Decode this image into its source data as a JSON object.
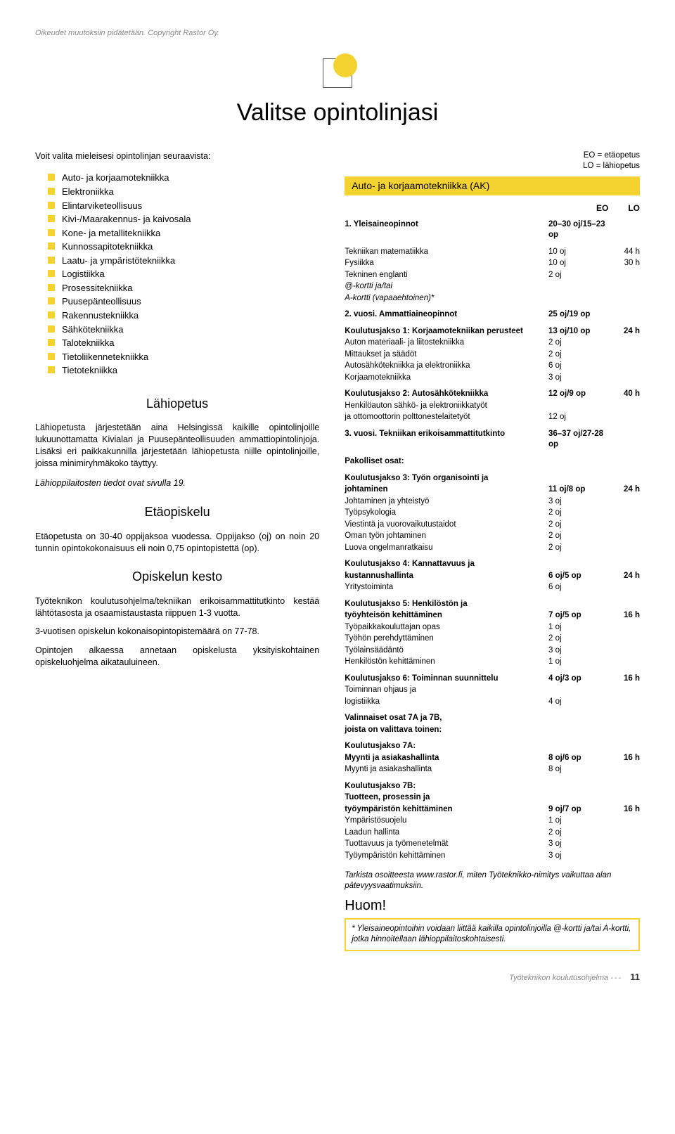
{
  "copyright": "Oikeudet muutoksiin pidätetään. Copyright Rastor Oy.",
  "pageTitle": "Valitse opintolinjasi",
  "intro": "Voit valita mieleisesi opintolinjan seuraavista:",
  "bullets": [
    "Auto- ja korjaamotekniikka",
    "Elektroniikka",
    "Elintarviketeollisuus",
    "Kivi-/Maarakennus- ja kaivosala",
    "Kone- ja metallitekniikka",
    "Kunnossapitotekniikka",
    "Laatu- ja ympäristötekniikka",
    "Logistiikka",
    "Prosessitekniikka",
    "Puusepänteollisuus",
    "Rakennustekniikka",
    "Sähkötekniikka",
    "Talotekniikka",
    "Tietoliikennetekniikka",
    "Tietotekniikka"
  ],
  "sub1": {
    "title": "Lähiopetus",
    "p1": "Lähiopetusta järjestetään aina Helsingissä kaikille opintolinjoille lukuunottamatta Kivialan ja Puusepänteollisuuden ammattiopintolinjoja. Lisäksi eri paikkakunnilla järjestetään lähiopetusta niille opintolinjoille, joissa minimiryhmäkoko täyttyy.",
    "p2": "Lähioppilaitosten tiedot ovat sivulla 19."
  },
  "sub2": {
    "title": "Etäopiskelu",
    "p1": "Etäopetusta on 30-40 oppijaksoa vuodessa. Oppijakso (oj) on noin 20 tunnin opintokokonaisuus eli noin 0,75 opintopistettä (op)."
  },
  "sub3": {
    "title": "Opiskelun kesto",
    "p1": "Työteknikon koulutusohjelma/tekniikan erikoisammattitutkinto kestää lähtötasosta ja osaamistaustasta riippuen 1-3 vuotta.",
    "p2": "3-vuotisen opiskelun kokonaisopintopistemäärä on 77-78.",
    "p3": "Opintojen alkaessa annetaan opiskelusta yksityiskohtainen opiskeluohjelma aikatauluineen."
  },
  "legend": {
    "l1": "EO = etäopetus",
    "l2": "LO = lähiopetus"
  },
  "sectionBar": "Auto- ja korjaamotekniikka (AK)",
  "hdr": {
    "c1": "EO",
    "c2": "LO"
  },
  "blocks": [
    {
      "type": "bold",
      "lbl": "1. Yleisaineopinnot",
      "c1": "20–30 oj/15–23 op",
      "c2": ""
    },
    {
      "type": "spacer"
    },
    {
      "type": "row",
      "lbl": "Tekniikan matematiikka",
      "c1": "10 oj",
      "c2": "44 h"
    },
    {
      "type": "row",
      "lbl": "Fysiikka",
      "c1": "10 oj",
      "c2": "30 h"
    },
    {
      "type": "row",
      "lbl": "Tekninen englanti",
      "c1": "2 oj",
      "c2": ""
    },
    {
      "type": "ital",
      "lbl": "@-kortti ja/tai",
      "c1": "",
      "c2": ""
    },
    {
      "type": "ital",
      "lbl": "A-kortti (vapaaehtoinen)*",
      "c1": "",
      "c2": ""
    },
    {
      "type": "bold",
      "lbl": "2. vuosi. Ammattiaineopinnot",
      "c1": "25 oj/19 op",
      "c2": ""
    },
    {
      "type": "spacer"
    },
    {
      "type": "rowb",
      "lbl": "Koulutusjakso 1: Korjaamotekniikan perusteet",
      "c1": "13 oj/10 op",
      "c2": "24 h"
    },
    {
      "type": "row",
      "lbl": "Auton materiaali- ja liitostekniikka",
      "c1": "2 oj",
      "c2": ""
    },
    {
      "type": "row",
      "lbl": "Mittaukset ja säädöt",
      "c1": "2 oj",
      "c2": ""
    },
    {
      "type": "row",
      "lbl": "Autosähkötekniikka ja elektroniikka",
      "c1": "6 oj",
      "c2": ""
    },
    {
      "type": "row",
      "lbl": "Korjaamotekniikka",
      "c1": "3 oj",
      "c2": ""
    },
    {
      "type": "spacer"
    },
    {
      "type": "rowb",
      "lbl": "Koulutusjakso 2: Autosähkötekniikka",
      "c1": "12 oj/9 op",
      "c2": "40 h"
    },
    {
      "type": "row",
      "lbl": "Henkilöauton sähkö- ja elektroniikkatyöt",
      "c1": "",
      "c2": ""
    },
    {
      "type": "row",
      "lbl": "ja ottomoottorin polttonestelaitetyöt",
      "c1": "12 oj",
      "c2": ""
    },
    {
      "type": "bold",
      "lbl": "3. vuosi. Tekniikan erikoisammattitutkinto",
      "c1": "36–37 oj/27-28 op",
      "c2": ""
    },
    {
      "type": "spacer"
    },
    {
      "type": "rowb",
      "lbl": "Pakolliset osat:",
      "c1": "",
      "c2": ""
    },
    {
      "type": "spacer"
    },
    {
      "type": "rowb",
      "lbl": "Koulutusjakso 3: Työn organisointi ja",
      "c1": "",
      "c2": ""
    },
    {
      "type": "rowb",
      "lbl": "johtaminen",
      "c1": "11 oj/8 op",
      "c2": "24 h"
    },
    {
      "type": "row",
      "lbl": "Johtaminen ja yhteistyö",
      "c1": "3 oj",
      "c2": ""
    },
    {
      "type": "row",
      "lbl": "Työpsykologia",
      "c1": "2 oj",
      "c2": ""
    },
    {
      "type": "row",
      "lbl": "Viestintä ja vuorovaikutustaidot",
      "c1": "2 oj",
      "c2": ""
    },
    {
      "type": "row",
      "lbl": "Oman työn johtaminen",
      "c1": "2 oj",
      "c2": ""
    },
    {
      "type": "row",
      "lbl": "Luova ongelmanratkaisu",
      "c1": "2 oj",
      "c2": ""
    },
    {
      "type": "spacer"
    },
    {
      "type": "rowb",
      "lbl": "Koulutusjakso 4: Kannattavuus ja",
      "c1": "",
      "c2": ""
    },
    {
      "type": "rowb",
      "lbl": "kustannushallinta",
      "c1": "6 oj/5 op",
      "c2": "24 h"
    },
    {
      "type": "row",
      "lbl": "Yritystoiminta",
      "c1": "6 oj",
      "c2": ""
    },
    {
      "type": "spacer"
    },
    {
      "type": "rowb",
      "lbl": "Koulutusjakso 5: Henkilöstön ja",
      "c1": "",
      "c2": ""
    },
    {
      "type": "rowb",
      "lbl": "työyhteisön kehittäminen",
      "c1": "7 oj/5 op",
      "c2": "16 h"
    },
    {
      "type": "row",
      "lbl": "Työpaikkakouluttajan opas",
      "c1": "1 oj",
      "c2": ""
    },
    {
      "type": "row",
      "lbl": "Työhön perehdyttäminen",
      "c1": "2 oj",
      "c2": ""
    },
    {
      "type": "row",
      "lbl": "Työlainsäädäntö",
      "c1": "3 oj",
      "c2": ""
    },
    {
      "type": "row",
      "lbl": "Henkilöstön kehittäminen",
      "c1": "1 oj",
      "c2": ""
    },
    {
      "type": "spacer"
    },
    {
      "type": "rowb",
      "lbl": "Koulutusjakso 6: Toiminnan suunnittelu",
      "c1": "4 oj/3 op",
      "c2": "16 h"
    },
    {
      "type": "row",
      "lbl": "Toiminnan ohjaus ja",
      "c1": "",
      "c2": ""
    },
    {
      "type": "row",
      "lbl": "logistiikka",
      "c1": "4 oj",
      "c2": ""
    },
    {
      "type": "spacer"
    },
    {
      "type": "rowb",
      "lbl": "Valinnaiset osat 7A ja 7B,",
      "c1": "",
      "c2": ""
    },
    {
      "type": "rowb",
      "lbl": "joista on valittava toinen:",
      "c1": "",
      "c2": ""
    },
    {
      "type": "spacer"
    },
    {
      "type": "rowb",
      "lbl": "Koulutusjakso 7A:",
      "c1": "",
      "c2": ""
    },
    {
      "type": "rowb",
      "lbl": "Myynti ja asiakashallinta",
      "c1": "8 oj/6 op",
      "c2": "16 h"
    },
    {
      "type": "row",
      "lbl": "Myynti ja asiakashallinta",
      "c1": "8 oj",
      "c2": ""
    },
    {
      "type": "spacer"
    },
    {
      "type": "rowb",
      "lbl": "Koulutusjakso 7B:",
      "c1": "",
      "c2": ""
    },
    {
      "type": "rowb",
      "lbl": "Tuotteen, prosessin ja",
      "c1": "",
      "c2": ""
    },
    {
      "type": "rowb",
      "lbl": "työympäristön kehittäminen",
      "c1": "9 oj/7 op",
      "c2": "16 h"
    },
    {
      "type": "row",
      "lbl": "Ympäristösuojelu",
      "c1": "1 oj",
      "c2": ""
    },
    {
      "type": "row",
      "lbl": "Laadun hallinta",
      "c1": "2 oj",
      "c2": ""
    },
    {
      "type": "row",
      "lbl": "Tuottavuus ja työmenetelmät",
      "c1": "3 oj",
      "c2": ""
    },
    {
      "type": "row",
      "lbl": "Työympäristön kehittäminen",
      "c1": "3 oj",
      "c2": ""
    }
  ],
  "tarkista": "Tarkista osoitteesta www.rastor.fi, miten Työteknikko-nimitys vaikuttaa alan pätevyysvaatimuksiin.",
  "huom": "Huom!",
  "noteBox": "* Yleisaineopintoihin voidaan liittää kaikilla opintolinjoilla @-kortti ja/tai A-kortti, jotka hinnoitellaan lähioppilaitoskohtaisesti.",
  "footer": {
    "txt": "Työteknikon koulutusohjelma",
    "pg": "11"
  },
  "colors": {
    "accent": "#f4d22f"
  }
}
